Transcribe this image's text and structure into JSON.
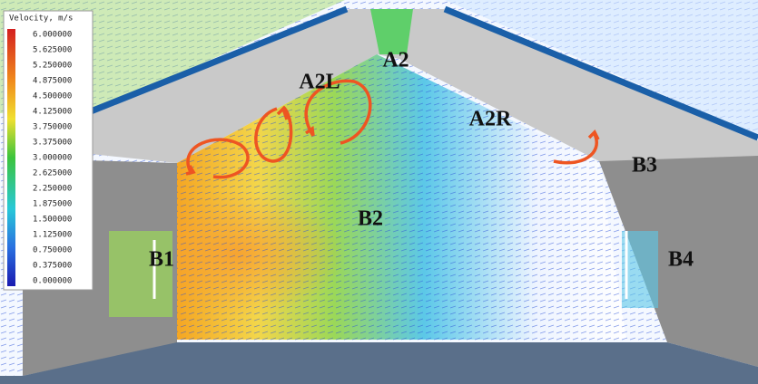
{
  "legend": {
    "title": "Velocity, m/s",
    "labels": [
      "6.000000",
      "5.625000",
      "5.250000",
      "4.875000",
      "4.500000",
      "4.125000",
      "3.750000",
      "3.375000",
      "3.000000",
      "2.625000",
      "2.250000",
      "1.875000",
      "1.500000",
      "1.125000",
      "0.750000",
      "0.375000",
      "0.000000"
    ]
  },
  "zones": {
    "a2": "A2",
    "a2l": "A2L",
    "a2r": "A2R",
    "b1": "B1",
    "b2": "B2",
    "b3": "B3",
    "b4": "B4"
  }
}
